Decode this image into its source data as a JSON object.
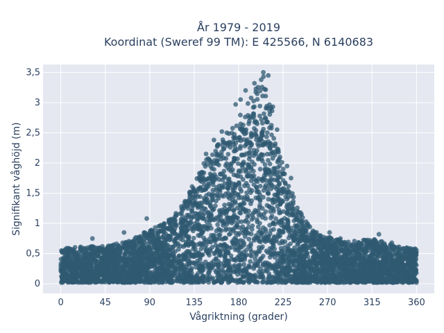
{
  "chart_data": {
    "type": "scatter",
    "title_line1": "År 1979 - 2019",
    "title_line2": "Koordinat (Sweref 99 TM): E 425566, N 6140683",
    "xlabel": "Vågriktning (grader)",
    "ylabel": "Signifikant våghöjd (m)",
    "xlim": [
      -18,
      378
    ],
    "ylim": [
      -0.16,
      3.63
    ],
    "x_ticks": [
      0,
      45,
      90,
      135,
      180,
      225,
      270,
      315,
      360
    ],
    "x_tick_labels": [
      "0",
      "45",
      "90",
      "135",
      "180",
      "225",
      "270",
      "315",
      "360"
    ],
    "y_ticks": [
      0,
      0.5,
      1,
      1.5,
      2,
      2.5,
      3,
      3.5
    ],
    "y_tick_labels": [
      "0",
      "0,5",
      "1",
      "1,5",
      "2",
      "2,5",
      "3",
      "3,5"
    ],
    "grid": true,
    "marker_color": "#2f5a72",
    "plot_bg": "#e5e8f1",
    "envelope": {
      "x": [
        0,
        20,
        45,
        70,
        90,
        105,
        120,
        135,
        150,
        165,
        180,
        195,
        205,
        215,
        225,
        240,
        255,
        270,
        290,
        315,
        340,
        360
      ],
      "y_max": [
        0.58,
        0.62,
        0.62,
        0.72,
        0.9,
        1.0,
        1.22,
        1.68,
        2.2,
        2.42,
        2.75,
        3.2,
        3.45,
        2.95,
        1.95,
        1.25,
        0.88,
        0.78,
        0.7,
        0.75,
        0.62,
        0.58
      ]
    },
    "outliers": [
      {
        "x": 205,
        "y": 3.5
      },
      {
        "x": 210,
        "y": 3.45
      },
      {
        "x": 196,
        "y": 3.32
      },
      {
        "x": 187,
        "y": 3.2
      },
      {
        "x": 182,
        "y": 3.05
      },
      {
        "x": 177,
        "y": 2.97
      },
      {
        "x": 163,
        "y": 2.52
      },
      {
        "x": 168,
        "y": 2.5
      },
      {
        "x": 155,
        "y": 2.38
      },
      {
        "x": 147,
        "y": 2.15
      },
      {
        "x": 87,
        "y": 1.08
      },
      {
        "x": 64,
        "y": 0.85
      },
      {
        "x": 32,
        "y": 0.75
      },
      {
        "x": 272,
        "y": 0.85
      },
      {
        "x": 322,
        "y": 0.82
      },
      {
        "x": 325,
        "y": 0.7
      },
      {
        "x": 335,
        "y": 0.68
      },
      {
        "x": 283,
        "y": 0.75
      },
      {
        "x": 110,
        "y": 1.05
      },
      {
        "x": 229,
        "y": 1.95
      },
      {
        "x": 233,
        "y": 1.75
      }
    ]
  }
}
